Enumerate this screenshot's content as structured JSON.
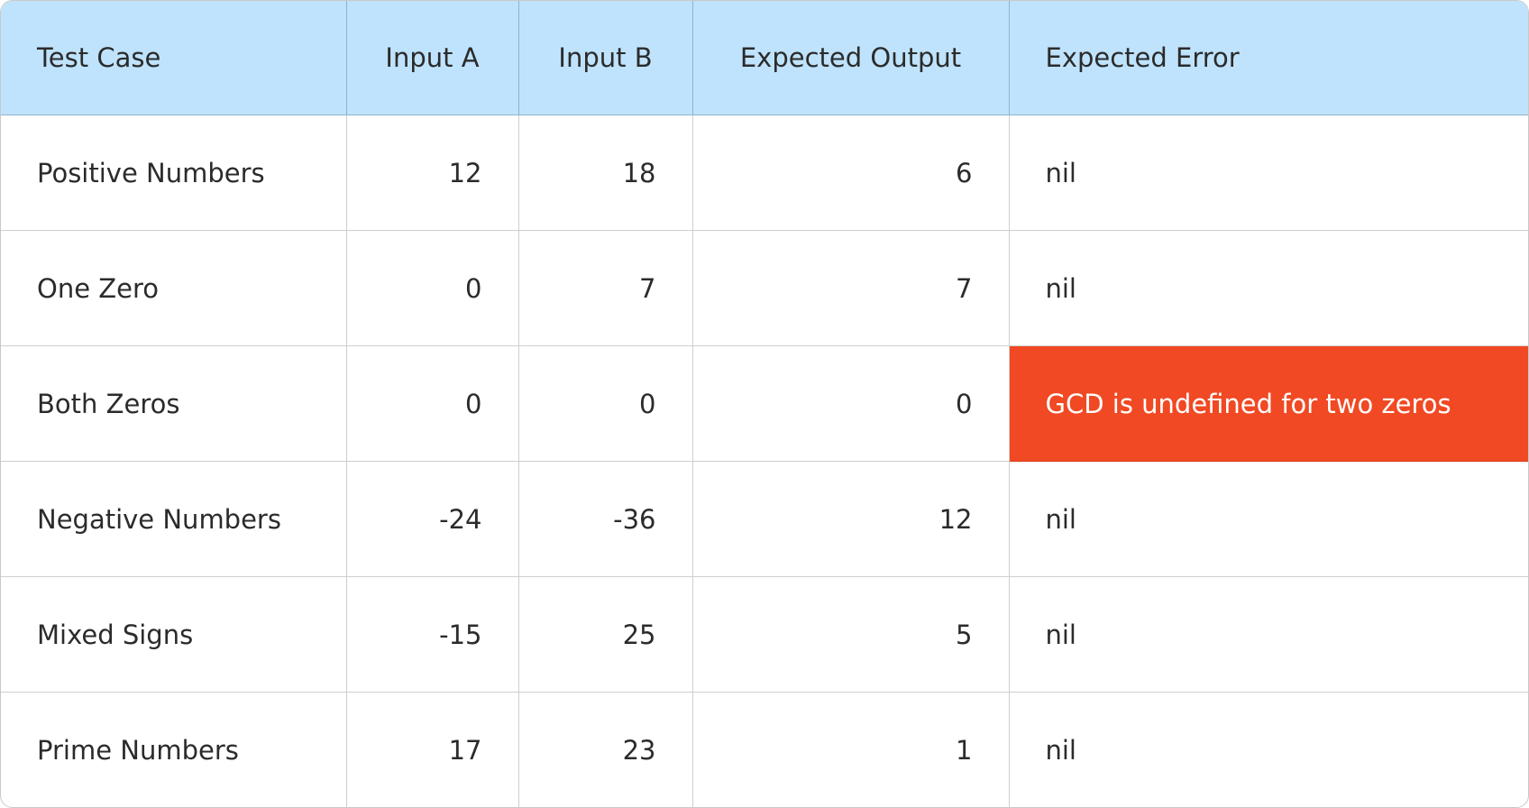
{
  "table": {
    "header": [
      "Test Case",
      "Input A",
      "Input B",
      "Expected Output",
      "Expected Error"
    ],
    "rows": [
      [
        "Positive Numbers",
        12,
        18,
        6,
        "nil"
      ],
      [
        "One Zero",
        0,
        7,
        7,
        "nil"
      ],
      [
        "Both Zeros",
        0,
        0,
        0,
        "GCD is undefined for two zeros"
      ],
      [
        "Negative Numbers",
        -24,
        -36,
        12,
        "nil"
      ],
      [
        "Mixed Signs",
        -15,
        25,
        5,
        "nil"
      ],
      [
        "Prime Numbers",
        17,
        23,
        1,
        "nil"
      ]
    ]
  }
}
